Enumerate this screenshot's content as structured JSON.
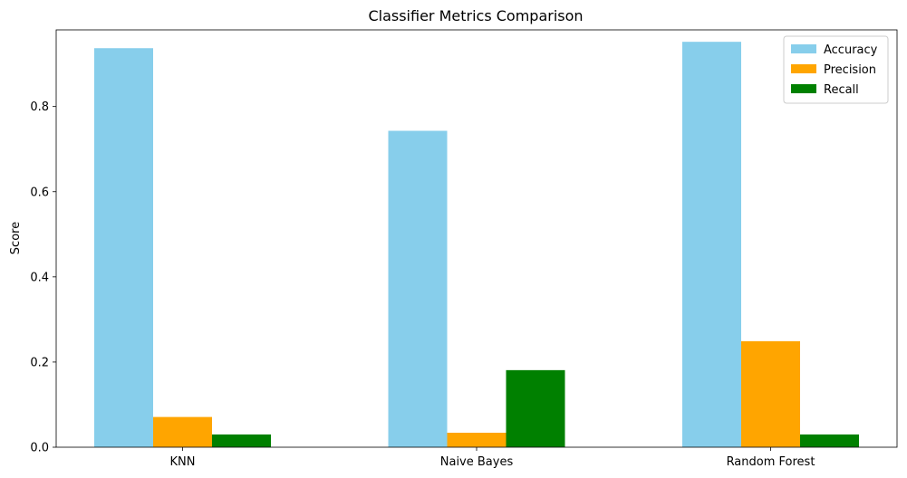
{
  "chart_data": {
    "type": "bar",
    "title": "Classifier Metrics Comparison",
    "xlabel": "",
    "ylabel": "Score",
    "categories": [
      "KNN",
      "Naive Bayes",
      "Random Forest"
    ],
    "series": [
      {
        "name": "Accuracy",
        "color": "#87ceeb",
        "values": [
          0.937,
          0.743,
          0.952
        ]
      },
      {
        "name": "Precision",
        "color": "#ffa500",
        "values": [
          0.071,
          0.034,
          0.249
        ]
      },
      {
        "name": "Recall",
        "color": "#008000",
        "values": [
          0.03,
          0.181,
          0.03
        ]
      }
    ],
    "ylim": [
      0,
      0.98
    ],
    "yticks": [
      0.0,
      0.2,
      0.4,
      0.6,
      0.8
    ],
    "ytick_labels": [
      "0.0",
      "0.2",
      "0.4",
      "0.6",
      "0.8"
    ],
    "grid": false,
    "legend_position": "top-right"
  }
}
